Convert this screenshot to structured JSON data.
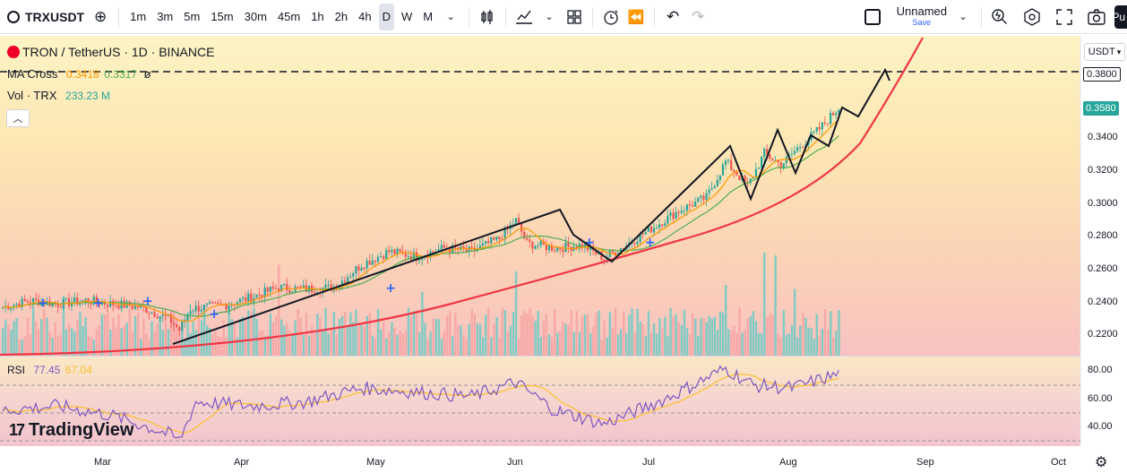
{
  "toolbar": {
    "symbol": "TRXUSDT",
    "intervals": [
      "1m",
      "3m",
      "5m",
      "15m",
      "30m",
      "45m",
      "1h",
      "2h",
      "4h",
      "D",
      "W",
      "M"
    ],
    "active_interval": "D",
    "layout_name": "Unnamed",
    "layout_save": "Save",
    "publish": "Pu"
  },
  "legend": {
    "title": "TRON / TetherUS · 1D · BINANCE",
    "ma_label": "MA Cross",
    "ma_val1": "0.3418",
    "ma_val2": "0.3317",
    "vol_label": "Vol · TRX",
    "vol_val": "233.23 M",
    "rsi_label": "RSI",
    "rsi_val1": "77.45",
    "rsi_val2": "67.04"
  },
  "price_axis": {
    "currency": "USDT",
    "line_price": "0.3800",
    "last_price": "0.3580",
    "ticks": [
      "0.3400",
      "0.3200",
      "0.3000",
      "0.2800",
      "0.2600",
      "0.2400",
      "0.2200"
    ],
    "rsi_ticks": [
      "80.00",
      "60.00",
      "40.00"
    ]
  },
  "time_axis": {
    "ticks": [
      "Mar",
      "Apr",
      "May",
      "Jun",
      "Jul",
      "Aug",
      "Sep",
      "Oct"
    ]
  },
  "branding": "TradingView",
  "colors": {
    "up": "#26a69a",
    "down": "#ef5350",
    "ma_fast": "#ff9800",
    "ma_slow": "#4caf50",
    "curve": "#f23645",
    "rsi": "#7e57c2",
    "rsi_ma": "#fbc02d"
  },
  "chart_data": {
    "type": "candlestick",
    "title": "TRON / TetherUS · 1D · BINANCE",
    "ylim": [
      0.21,
      0.386
    ],
    "reference_line": 0.38,
    "last_price": 0.358,
    "rsi_range": [
      30,
      90
    ],
    "rsi_levels": [
      70,
      50,
      30
    ],
    "price_anchors": [
      [
        0,
        0.236
      ],
      [
        10,
        0.24
      ],
      [
        20,
        0.238
      ],
      [
        30,
        0.24
      ],
      [
        40,
        0.238
      ],
      [
        50,
        0.236
      ],
      [
        60,
        0.229
      ],
      [
        64,
        0.222
      ],
      [
        68,
        0.235
      ],
      [
        80,
        0.237
      ],
      [
        90,
        0.242
      ],
      [
        100,
        0.248
      ],
      [
        110,
        0.247
      ],
      [
        120,
        0.248
      ],
      [
        130,
        0.262
      ],
      [
        140,
        0.27
      ],
      [
        150,
        0.267
      ],
      [
        160,
        0.272
      ],
      [
        170,
        0.27
      ],
      [
        180,
        0.278
      ],
      [
        186,
        0.289
      ],
      [
        190,
        0.275
      ],
      [
        200,
        0.272
      ],
      [
        210,
        0.274
      ],
      [
        218,
        0.266
      ],
      [
        225,
        0.273
      ],
      [
        235,
        0.284
      ],
      [
        245,
        0.295
      ],
      [
        255,
        0.303
      ],
      [
        262,
        0.325
      ],
      [
        270,
        0.31
      ],
      [
        276,
        0.33
      ],
      [
        282,
        0.323
      ],
      [
        288,
        0.333
      ],
      [
        296,
        0.345
      ],
      [
        303,
        0.358
      ]
    ],
    "rsi_anchors": [
      [
        0,
        52
      ],
      [
        20,
        55
      ],
      [
        40,
        48
      ],
      [
        60,
        35
      ],
      [
        64,
        30
      ],
      [
        70,
        58
      ],
      [
        90,
        55
      ],
      [
        110,
        58
      ],
      [
        130,
        68
      ],
      [
        150,
        65
      ],
      [
        170,
        62
      ],
      [
        186,
        72
      ],
      [
        200,
        52
      ],
      [
        218,
        42
      ],
      [
        240,
        60
      ],
      [
        262,
        82
      ],
      [
        272,
        70
      ],
      [
        286,
        68
      ],
      [
        303,
        78
      ]
    ],
    "volume_scale": [
      0,
      10
    ]
  }
}
